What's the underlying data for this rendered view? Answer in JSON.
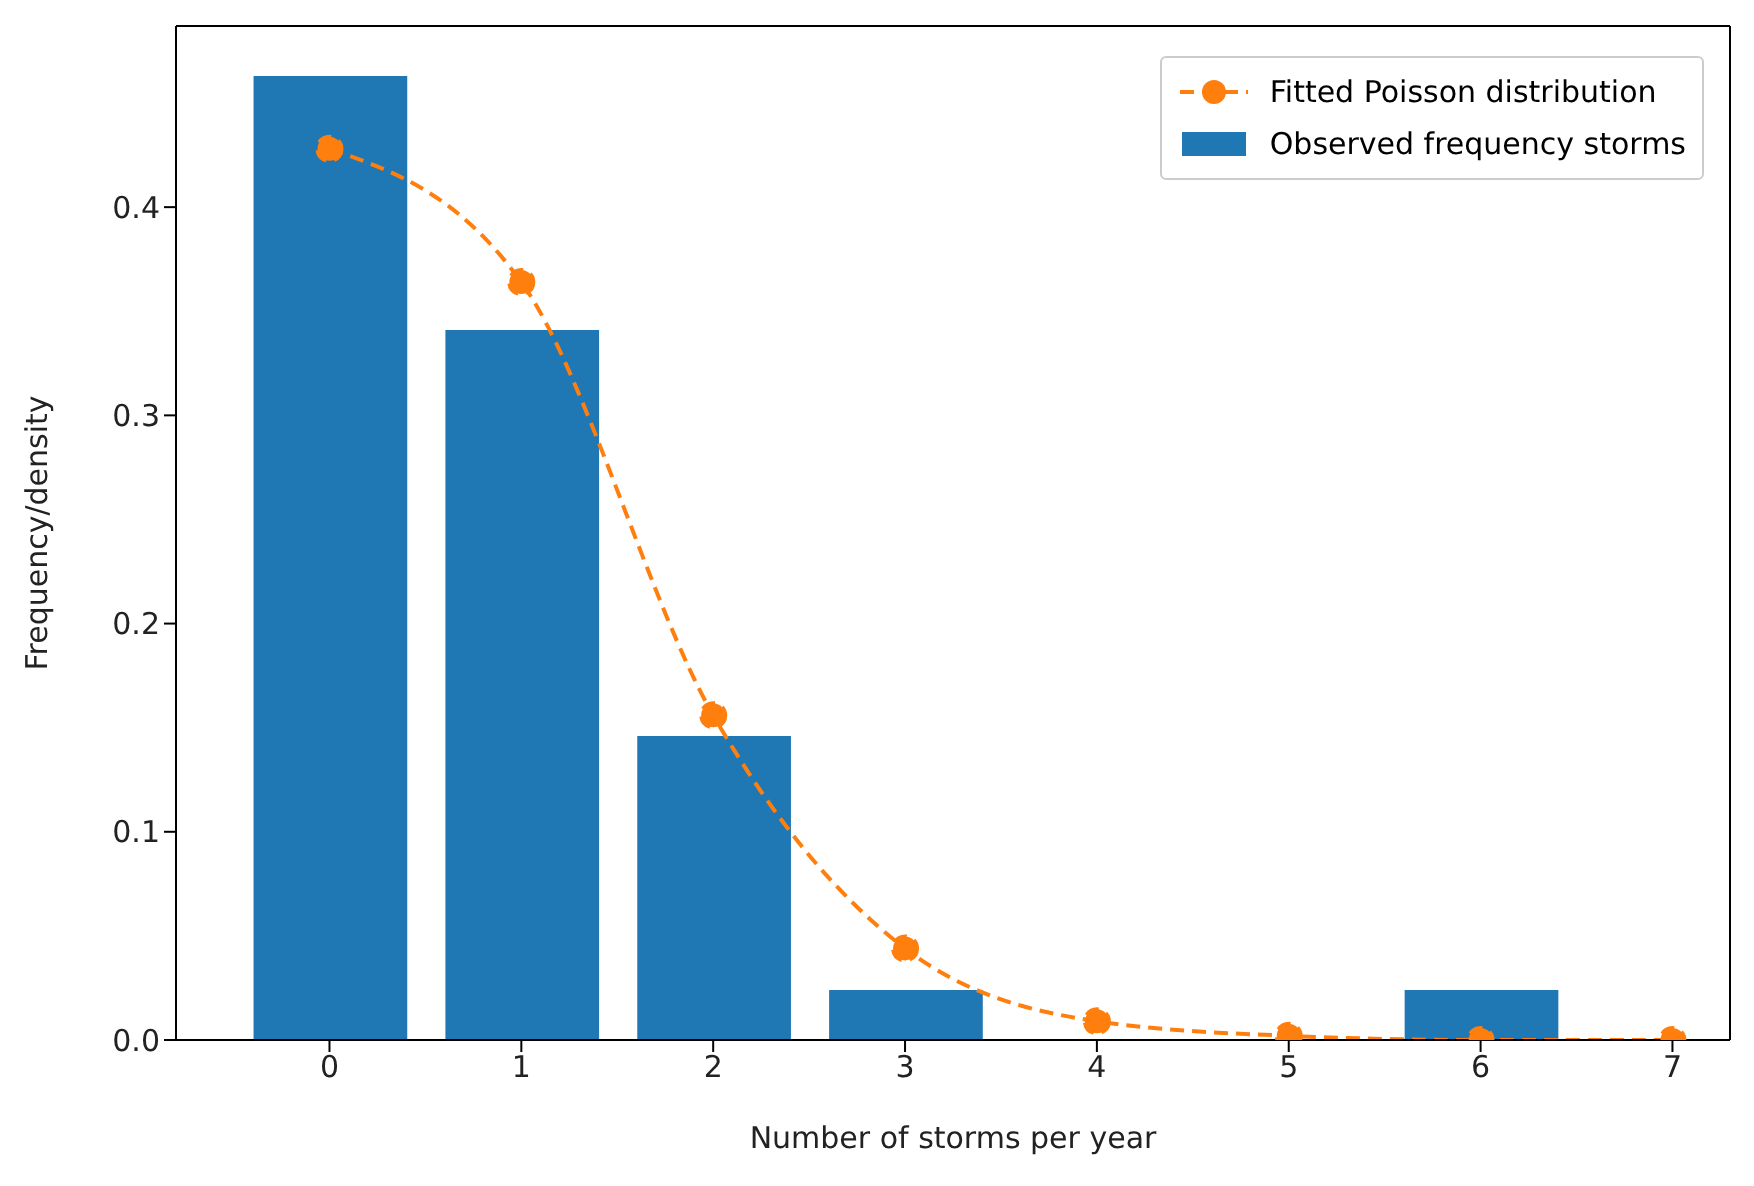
{
  "chart_data": {
    "type": "bar",
    "xlabel": "Number of storms per year",
    "ylabel": "Frequency/density",
    "x": [
      0,
      1,
      2,
      3,
      4,
      5,
      6,
      7
    ],
    "series": [
      {
        "type": "line",
        "name": "Fitted Poisson distribution",
        "color": "#ff7f0e",
        "values": [
          0.428,
          0.364,
          0.156,
          0.044,
          0.009,
          0.002,
          0,
          0
        ],
        "line_style": "dashed",
        "marker": "circle"
      },
      {
        "name": "Observed frequency storms",
        "color": "#1f77b4",
        "values": [
          0.463,
          0.341,
          0.146,
          0.024,
          0,
          0,
          0.024,
          0
        ]
      }
    ],
    "xlim": [
      -0.8,
      7.3
    ],
    "xticks": [
      0,
      1,
      2,
      3,
      4,
      5,
      6,
      7
    ],
    "ylim": [
      0,
      0.487
    ],
    "yticks": [
      {
        "value": 0,
        "label": "0.0"
      },
      {
        "value": 0.1,
        "label": "0.1"
      },
      {
        "value": 0.2,
        "label": "0.2"
      },
      {
        "value": 0.3,
        "label": "0.3"
      },
      {
        "value": 0.4,
        "label": "0.4"
      }
    ],
    "grid": false,
    "legend": "top right"
  }
}
